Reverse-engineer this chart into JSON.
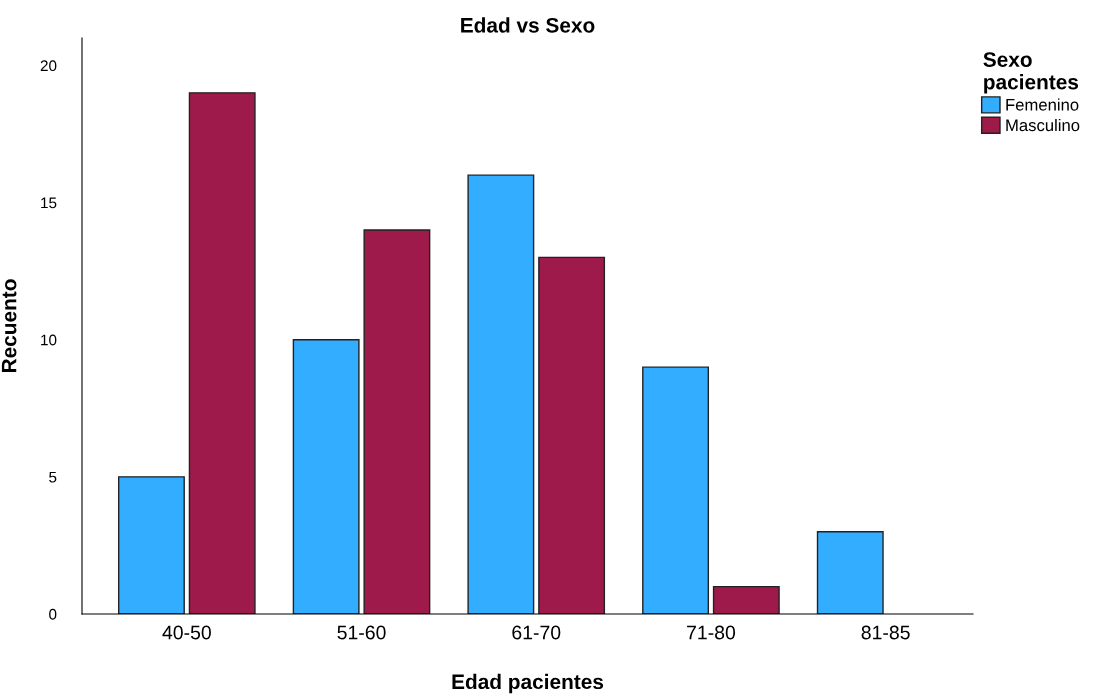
{
  "chart_data": {
    "type": "bar",
    "title": "Edad vs Sexo",
    "xlabel": "Edad pacientes",
    "ylabel": "Recuento",
    "categories": [
      "40-50",
      "51-60",
      "61-70",
      "71-80",
      "81-85"
    ],
    "series": [
      {
        "name": "Femenino",
        "color": "#33adff",
        "values": [
          5,
          10,
          16,
          9,
          3
        ]
      },
      {
        "name": "Masculino",
        "color": "#9e1a4a",
        "values": [
          19,
          14,
          13,
          1,
          null
        ]
      }
    ],
    "ylim": [
      0,
      21
    ],
    "yticks": [
      0,
      5,
      10,
      15,
      20
    ],
    "grid": false,
    "legend": "top right",
    "legend_title": "Sexo\npacientes"
  }
}
